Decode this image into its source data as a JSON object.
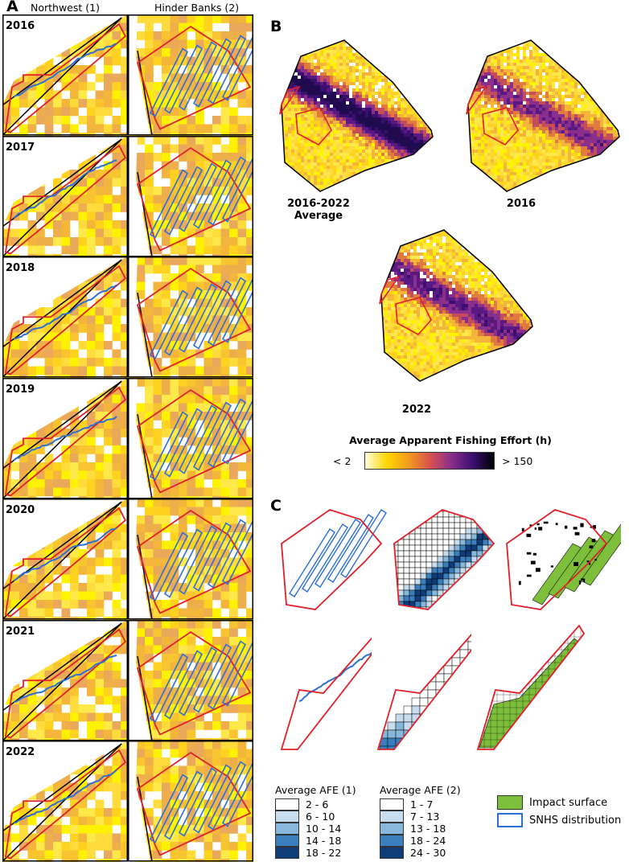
{
  "panel_a": {
    "letter": "A",
    "columns": [
      "Northwest (1)",
      "Hinder Banks (2)"
    ],
    "years": [
      "2016",
      "2017",
      "2018",
      "2019",
      "2020",
      "2021",
      "2022"
    ]
  },
  "panel_b": {
    "letter": "B",
    "maps": [
      {
        "label_line1": "2016-2022",
        "label_line2": "Average"
      },
      {
        "label_line1": "2016",
        "label_line2": ""
      },
      {
        "label_line1": "2022",
        "label_line2": ""
      }
    ],
    "colorbar": {
      "title": "Average Apparent Fishing Effort (h)",
      "min_label": "< 2",
      "max_label": "> 150",
      "colors": [
        "#fffde0",
        "#ffd700",
        "#f39c1e",
        "#d9534e",
        "#8b2f8c",
        "#3b0f70",
        "#000004"
      ]
    }
  },
  "panel_c": {
    "letter": "C",
    "legend_afe1": {
      "title": "Average AFE (1)",
      "classes": [
        {
          "label": "2 - 6",
          "color": "#ffffff"
        },
        {
          "label": "6 - 10",
          "color": "#c7dcef"
        },
        {
          "label": "10 - 14",
          "color": "#87b8dc"
        },
        {
          "label": "14 - 18",
          "color": "#3a80bf"
        },
        {
          "label": "18 - 22",
          "color": "#0e3d7a"
        }
      ]
    },
    "legend_afe2": {
      "title": "Average AFE (2)",
      "classes": [
        {
          "label": "1 - 7",
          "color": "#ffffff"
        },
        {
          "label": "7 - 13",
          "color": "#c7dcef"
        },
        {
          "label": "13 - 18",
          "color": "#87b8dc"
        },
        {
          "label": "18 - 24",
          "color": "#3a80bf"
        },
        {
          "label": "24 - 30",
          "color": "#0e3d7a"
        }
      ]
    },
    "legend_other": [
      {
        "label": "Impact surface",
        "color": "#7dbf3a"
      },
      {
        "label": "SNHS distribution",
        "color": "#2a6fd6"
      }
    ]
  },
  "colors": {
    "boundary_red": "#e0202a",
    "snhs_blue": "#2a6fd6",
    "impact_green": "#7dbf3a"
  }
}
